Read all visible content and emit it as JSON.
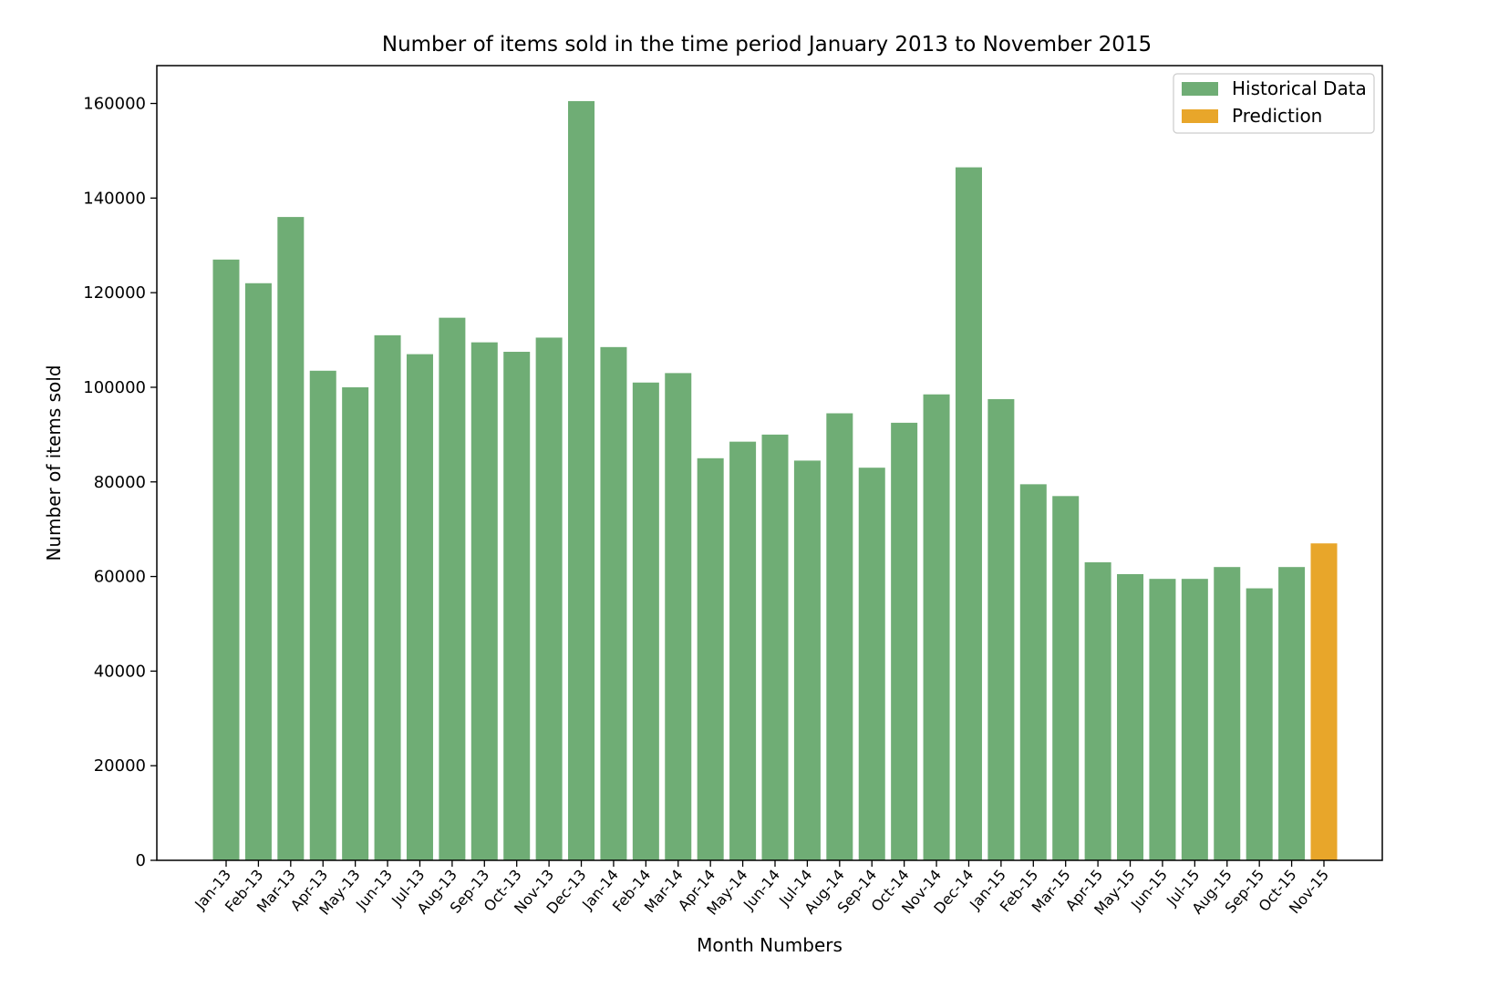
{
  "chart_data": {
    "type": "bar",
    "title": "Number of items sold in the time period January 2013 to November 2015",
    "xlabel": "Month Numbers",
    "ylabel": "Number of items sold",
    "ylim": [
      0,
      168000
    ],
    "yticks": [
      0,
      20000,
      40000,
      60000,
      80000,
      100000,
      120000,
      140000,
      160000
    ],
    "grid": false,
    "legend_position": "top-right",
    "categories": [
      "Jan-13",
      "Feb-13",
      "Mar-13",
      "Apr-13",
      "May-13",
      "Jun-13",
      "Jul-13",
      "Aug-13",
      "Sep-13",
      "Oct-13",
      "Nov-13",
      "Dec-13",
      "Jan-14",
      "Feb-14",
      "Mar-14",
      "Apr-14",
      "May-14",
      "Jun-14",
      "Jul-14",
      "Aug-14",
      "Sep-14",
      "Oct-14",
      "Nov-14",
      "Dec-14",
      "Jan-15",
      "Feb-15",
      "Mar-15",
      "Apr-15",
      "May-15",
      "Jun-15",
      "Jul-15",
      "Aug-15",
      "Sep-15",
      "Oct-15",
      "Nov-15"
    ],
    "series": [
      {
        "name": "Historical Data",
        "color": "#6fad75",
        "values": [
          127000,
          122000,
          136000,
          103500,
          100000,
          111000,
          107000,
          114700,
          109500,
          107500,
          110500,
          160500,
          108500,
          101000,
          103000,
          85000,
          88500,
          90000,
          84500,
          94500,
          83000,
          92500,
          98500,
          146500,
          97500,
          79500,
          77000,
          63000,
          60500,
          59500,
          59500,
          62000,
          57500,
          62000,
          null
        ]
      },
      {
        "name": "Prediction",
        "color": "#e8a62a",
        "values": [
          null,
          null,
          null,
          null,
          null,
          null,
          null,
          null,
          null,
          null,
          null,
          null,
          null,
          null,
          null,
          null,
          null,
          null,
          null,
          null,
          null,
          null,
          null,
          null,
          null,
          null,
          null,
          null,
          null,
          null,
          null,
          null,
          null,
          null,
          67000
        ]
      }
    ]
  }
}
